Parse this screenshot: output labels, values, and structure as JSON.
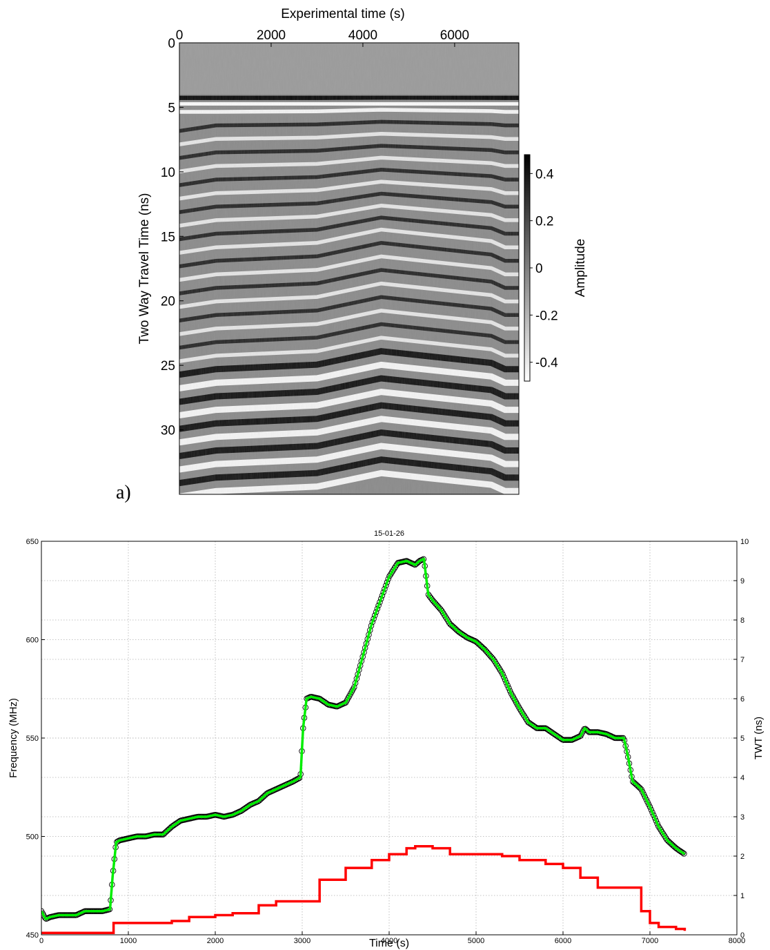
{
  "chart_data": [
    {
      "type": "heatmap",
      "panel_label": "a)",
      "xlabel": "Experimental time (s)",
      "ylabel": "Two Way Travel Time (ns)",
      "xlim": [
        0,
        7400
      ],
      "ylim": [
        0,
        35
      ],
      "y_reversed": true,
      "x_ticks": [
        "0",
        "2000",
        "4000",
        "6000"
      ],
      "y_ticks": [
        "0",
        "5",
        "10",
        "15",
        "20",
        "25",
        "30"
      ],
      "colormap": "gray",
      "colorbar": {
        "label": "Amplitude",
        "range": [
          -0.48,
          0.48
        ],
        "ticks": [
          "0.4",
          "0.2",
          "0",
          "-0.2",
          "-0.4"
        ]
      }
    },
    {
      "type": "line",
      "title": "15-01-26",
      "xlabel": "Time (s)",
      "ylabel_left": "Frequency (MHz)",
      "ylabel_right": "TWT (ns)",
      "xlim": [
        0,
        8000
      ],
      "ylim_left": [
        450,
        650
      ],
      "ylim_right": [
        0,
        10
      ],
      "grid": true,
      "x_ticks": [
        "0",
        "1000",
        "2000",
        "3000",
        "4000",
        "5000",
        "6000",
        "7000",
        "8000"
      ],
      "y_left_ticks": [
        "450",
        "500",
        "550",
        "600",
        "650"
      ],
      "y_right_ticks": [
        "0",
        "1",
        "2",
        "3",
        "4",
        "5",
        "6",
        "7",
        "8",
        "9",
        "10"
      ],
      "colors": {
        "frequency_fit": "#00ee00",
        "frequency_points": "#000000",
        "twt": "#ff0000",
        "left_axis_label": "#22dd22",
        "right_axis_label": "#ee2222"
      },
      "series": [
        {
          "axis": "left",
          "style": "line",
          "x": [
            0,
            50,
            100,
            200,
            300,
            400,
            500,
            600,
            700,
            790,
            820,
            860,
            900,
            1000,
            1100,
            1200,
            1300,
            1400,
            1500,
            1600,
            1700,
            1800,
            1900,
            2000,
            2100,
            2200,
            2300,
            2400,
            2500,
            2600,
            2700,
            2800,
            2900,
            2980,
            3010,
            3050,
            3100,
            3200,
            3300,
            3400,
            3500,
            3600,
            3700,
            3800,
            3900,
            4000,
            4100,
            4200,
            4300,
            4350,
            4400,
            4450,
            4500,
            4600,
            4700,
            4800,
            4900,
            5000,
            5100,
            5200,
            5300,
            5400,
            5500,
            5600,
            5700,
            5800,
            5900,
            6000,
            6100,
            6200,
            6250,
            6300,
            6400,
            6500,
            6600,
            6700,
            6750,
            6800,
            6900,
            7000,
            7100,
            7200,
            7300,
            7400
          ],
          "values": [
            462,
            458,
            459,
            460,
            460,
            460,
            462,
            462,
            462,
            463,
            480,
            497,
            498,
            499,
            500,
            500,
            501,
            501,
            505,
            508,
            509,
            510,
            510,
            511,
            510,
            511,
            513,
            516,
            518,
            522,
            524,
            526,
            528,
            530,
            555,
            570,
            571,
            570,
            567,
            566,
            568,
            576,
            592,
            608,
            620,
            632,
            639,
            640,
            638,
            640,
            641,
            623,
            620,
            615,
            608,
            604,
            601,
            599,
            595,
            590,
            583,
            573,
            565,
            558,
            555,
            555,
            552,
            549,
            549,
            551,
            555,
            553,
            553,
            552,
            550,
            550,
            540,
            528,
            524,
            515,
            505,
            498,
            494,
            491
          ]
        },
        {
          "axis": "right",
          "style": "line",
          "x": [
            0,
            790,
            830,
            1000,
            1500,
            1700,
            2000,
            2200,
            2500,
            2700,
            2990,
            3200,
            3500,
            3800,
            4000,
            4200,
            4300,
            4500,
            4700,
            5000,
            5300,
            5500,
            5800,
            6000,
            6200,
            6400,
            6700,
            6900,
            7000,
            7100,
            7300,
            7400
          ],
          "values": [
            0.05,
            0.05,
            0.3,
            0.3,
            0.35,
            0.45,
            0.5,
            0.55,
            0.75,
            0.85,
            0.85,
            1.4,
            1.7,
            1.9,
            2.05,
            2.2,
            2.25,
            2.2,
            2.05,
            2.05,
            2.0,
            1.9,
            1.8,
            1.7,
            1.45,
            1.2,
            1.2,
            0.6,
            0.3,
            0.2,
            0.15,
            0.1
          ]
        }
      ]
    }
  ]
}
